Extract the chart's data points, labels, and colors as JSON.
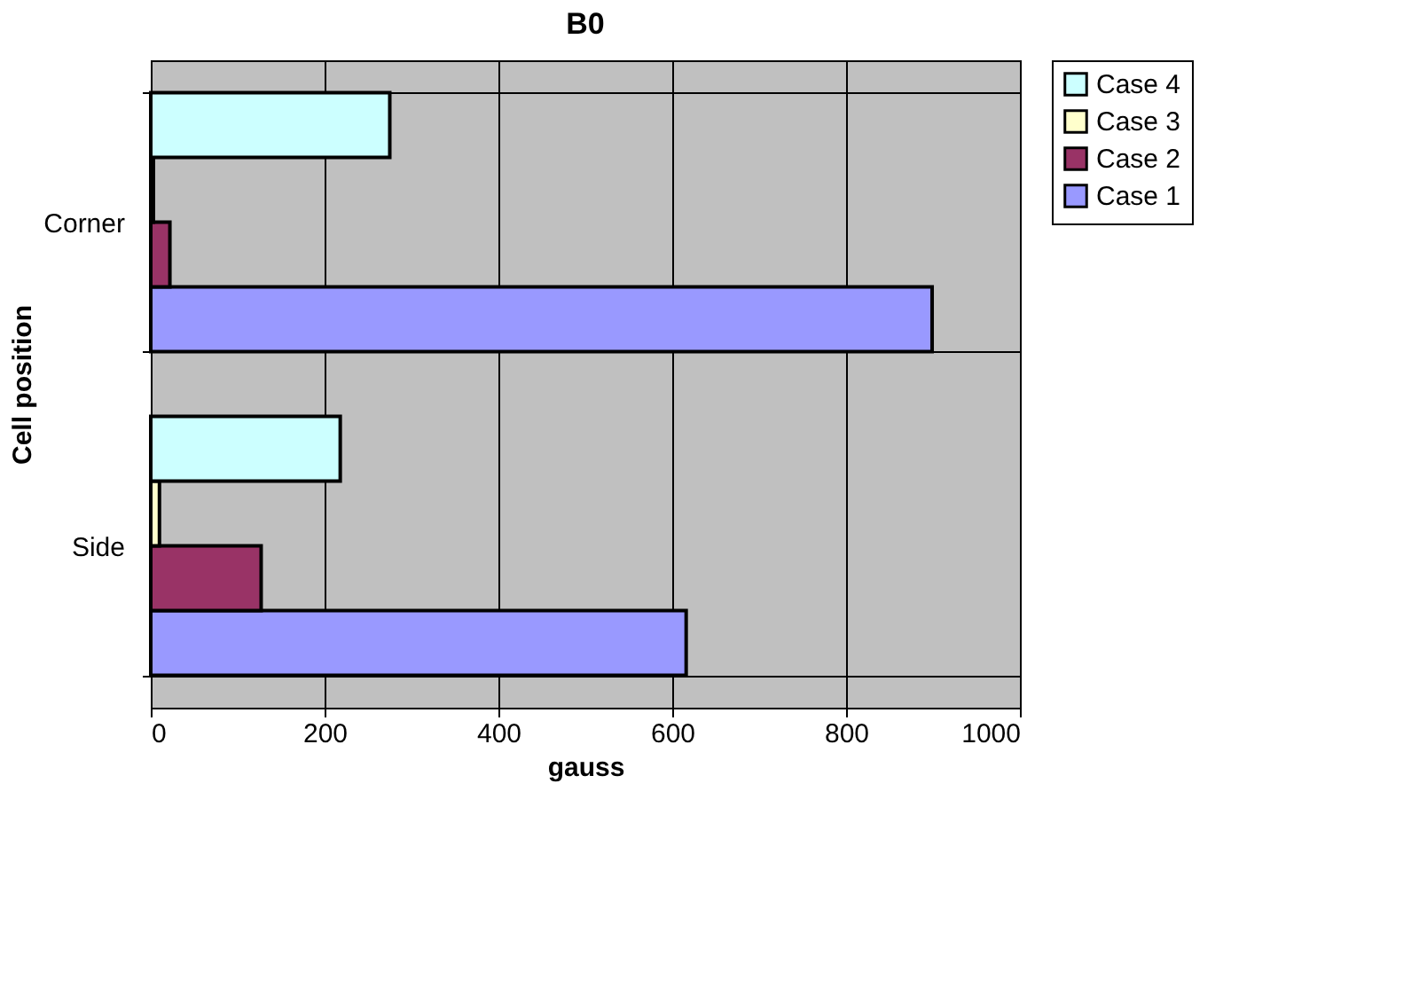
{
  "chart_data": {
    "type": "bar",
    "orientation": "horizontal",
    "title": "B0",
    "xlabel": "gauss",
    "ylabel": "Cell position",
    "categories": [
      "Corner",
      "Side"
    ],
    "series": [
      {
        "name": "Case 1",
        "color": "#9999ff",
        "values": [
          899,
          616
        ]
      },
      {
        "name": "Case 2",
        "color": "#993366",
        "values": [
          22,
          127
        ]
      },
      {
        "name": "Case 3",
        "color": "#ffffcc",
        "values": [
          3,
          10
        ]
      },
      {
        "name": "Case 4",
        "color": "#ccffff",
        "values": [
          275,
          218
        ]
      }
    ],
    "xlim": [
      0,
      1000
    ],
    "xticks": [
      0,
      200,
      400,
      600,
      800,
      1000
    ],
    "grid": true,
    "legend": "right"
  }
}
